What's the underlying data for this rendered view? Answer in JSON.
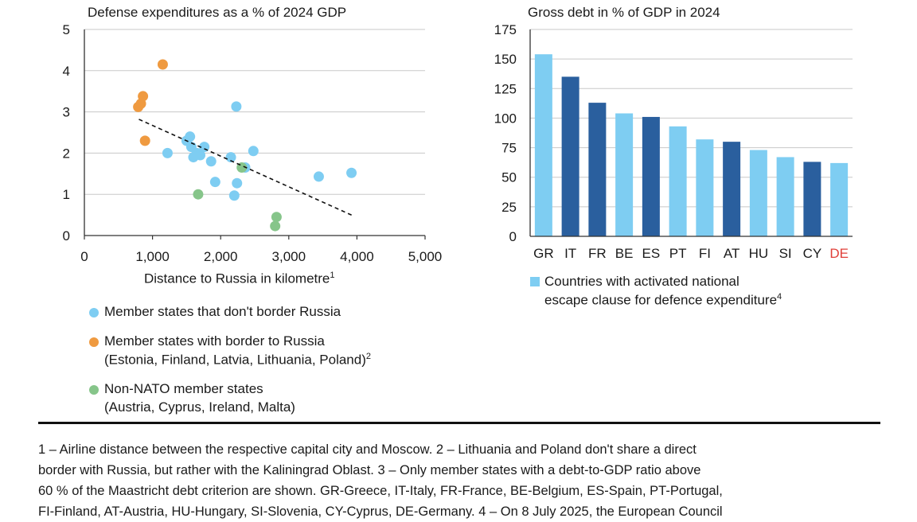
{
  "colors": {
    "blue_light": "#7ecdf2",
    "blue_dark": "#2a5f9e",
    "orange": "#ef9a40",
    "green": "#86c58a",
    "highlight_red": "#e0403a",
    "grid": "#c8c8c8"
  },
  "chart_data": [
    {
      "type": "scatter",
      "title": "Defense expenditures as a % of 2024 GDP",
      "xlabel": "Distance to Russia in kilometre",
      "xlabel_sup": "1",
      "xlim": [
        0,
        5000
      ],
      "ylim": [
        0,
        5
      ],
      "xticks": [
        0,
        1000,
        2000,
        3000,
        4000,
        5000
      ],
      "xtick_labels": [
        "0",
        "1,000",
        "2,000",
        "3,000",
        "4,000",
        "5,000"
      ],
      "yticks": [
        0,
        1,
        2,
        3,
        4,
        5
      ],
      "ytick_labels": [
        "0",
        "1",
        "2",
        "3",
        "4",
        "5"
      ],
      "grid": true,
      "trendline": {
        "style": "dashed",
        "x": [
          800,
          3930
        ],
        "y": [
          2.82,
          0.49
        ]
      },
      "series": [
        {
          "name": "Member states that don't border Russia",
          "color": "#7ecdf2",
          "points": [
            [
              1220,
              2.0
            ],
            [
              1500,
              2.3
            ],
            [
              1550,
              2.4
            ],
            [
              1570,
              2.15
            ],
            [
              1600,
              1.9
            ],
            [
              1650,
              2.0
            ],
            [
              1700,
              1.95
            ],
            [
              1760,
              2.15
            ],
            [
              1860,
              1.8
            ],
            [
              1920,
              1.3
            ],
            [
              2150,
              1.9
            ],
            [
              2200,
              0.97
            ],
            [
              2230,
              3.13
            ],
            [
              2240,
              1.27
            ],
            [
              2360,
              1.65
            ],
            [
              2480,
              2.05
            ],
            [
              3440,
              1.43
            ],
            [
              3920,
              1.52
            ]
          ]
        },
        {
          "name": "Member states with border to Russia",
          "color": "#ef9a40",
          "points": [
            [
              790,
              3.12
            ],
            [
              830,
              3.2
            ],
            [
              860,
              3.38
            ],
            [
              890,
              2.3
            ],
            [
              1150,
              4.15
            ]
          ]
        },
        {
          "name": "Non-NATO member states",
          "color": "#86c58a",
          "points": [
            [
              1670,
              1.0
            ],
            [
              2310,
              1.65
            ],
            [
              2800,
              0.23
            ],
            [
              2820,
              0.45
            ]
          ]
        }
      ],
      "legend": [
        {
          "lines": [
            "Member states that don't border Russia"
          ],
          "color": "#7ecdf2"
        },
        {
          "lines": [
            "Member states with border to Russia",
            "(Estonia, Finland, Latvia, Lithuania, Poland)"
          ],
          "sup": "2",
          "color": "#ef9a40"
        },
        {
          "lines": [
            "Non-NATO member states",
            "(Austria, Cyprus, Ireland, Malta)"
          ],
          "color": "#86c58a"
        }
      ]
    },
    {
      "type": "bar",
      "title": "Gross debt in % of GDP in 2024",
      "ylim": [
        0,
        175
      ],
      "yticks": [
        0,
        25,
        50,
        75,
        100,
        125,
        150,
        175
      ],
      "ytick_labels": [
        "0",
        "25",
        "50",
        "75",
        "100",
        "125",
        "150",
        "175"
      ],
      "grid": true,
      "categories": [
        "GR",
        "IT",
        "FR",
        "BE",
        "ES",
        "PT",
        "FI",
        "AT",
        "HU",
        "SI",
        "CY",
        "DE"
      ],
      "values": [
        154,
        135,
        113,
        104,
        101,
        93,
        82,
        80,
        73,
        67,
        63,
        62
      ],
      "escape_clause": [
        true,
        false,
        false,
        true,
        false,
        true,
        true,
        false,
        true,
        true,
        false,
        true
      ],
      "highlight_label": "DE",
      "legend": {
        "lines": [
          "Countries with activated national",
          "escape clause for defence expenditure"
        ],
        "sup": "4",
        "color": "#7ecdf2"
      }
    }
  ],
  "footnote": {
    "lines": [
      "1 – Airline distance between the respective capital city and Moscow.  2 – Lithuania and Poland don't share a direct",
      "border with Russia, but rather with the Kaliningrad Oblast.  3 – Only member states with a debt-to-GDP ratio above",
      "60 % of the Maastricht debt criterion are shown. GR-Greece, IT-Italy, FR-France, BE-Belgium, ES-Spain, PT-Portugal,",
      "FI-Finland, AT-Austria, HU-Hungary, SI-Slovenia, CY-Cyprus, DE-Germany.  4 – On 8 July 2025, the European Council"
    ]
  }
}
